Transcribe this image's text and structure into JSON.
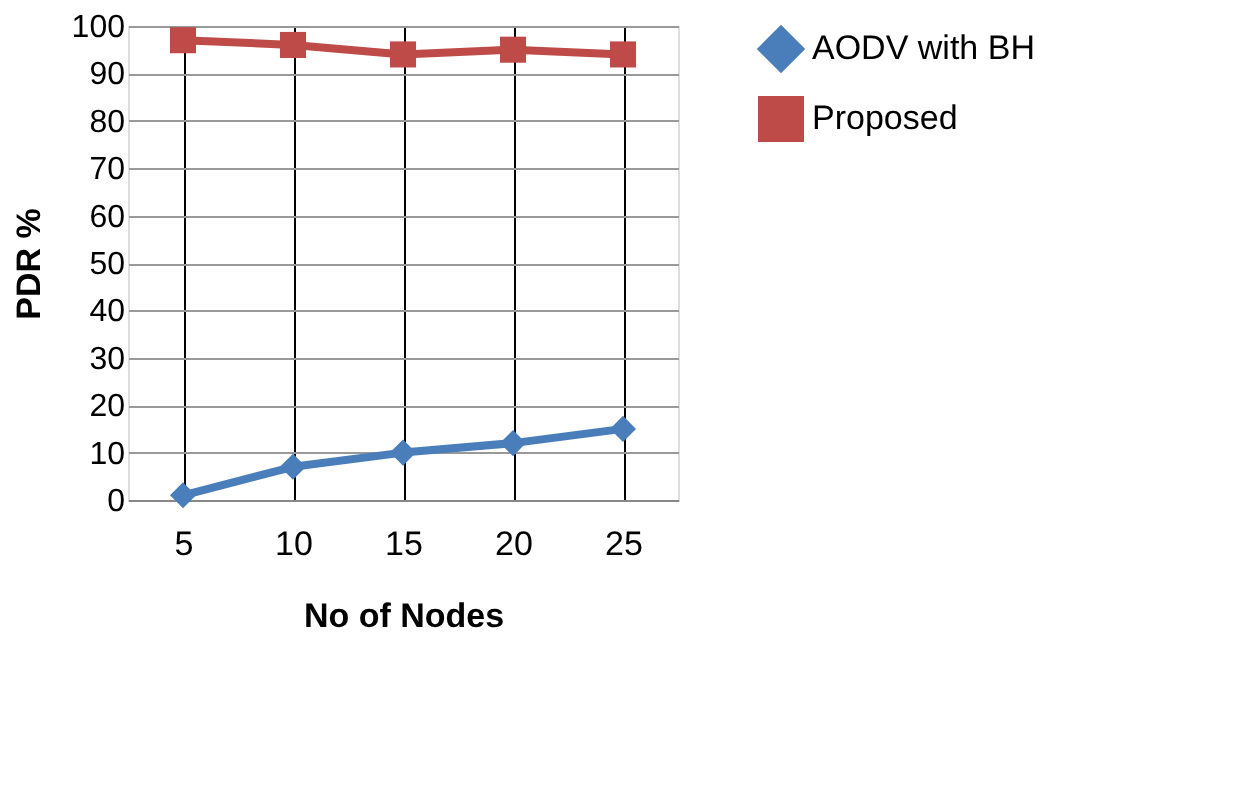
{
  "chart_data": {
    "type": "line",
    "xlabel": "No of  Nodes",
    "ylabel": "PDR %",
    "categories": [
      "5",
      "10",
      "15",
      "20",
      "25"
    ],
    "series": [
      {
        "name": "AODV with BH",
        "color": "#4a7ebb",
        "marker": "diamond",
        "values": [
          1,
          7,
          10,
          12,
          15
        ]
      },
      {
        "name": "Proposed",
        "color": "#be4b48",
        "marker": "square",
        "values": [
          97,
          96,
          94,
          95,
          94
        ]
      }
    ],
    "ylim": [
      0,
      100
    ],
    "yticks": [
      0,
      10,
      20,
      30,
      40,
      50,
      60,
      70,
      80,
      90,
      100
    ],
    "grid": true,
    "legend": "right",
    "line_style": "solid"
  }
}
